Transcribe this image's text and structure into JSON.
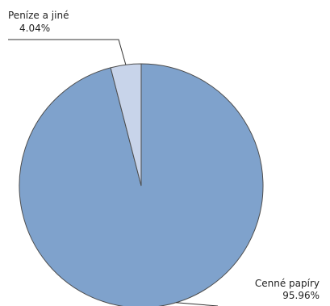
{
  "chart_data": {
    "type": "pie",
    "title": "",
    "slices": [
      {
        "label": "Cenné papíry",
        "value": 95.96,
        "value_label": "95.96%",
        "color": "#7fa2cc"
      },
      {
        "label": "Peníze a jiné",
        "value": 4.04,
        "value_label": "4.04%",
        "color": "#c8d4ea"
      }
    ],
    "start_angle_deg": 0,
    "direction": "clockwise",
    "edge_color": "#4d4d4d",
    "legend": "none"
  }
}
